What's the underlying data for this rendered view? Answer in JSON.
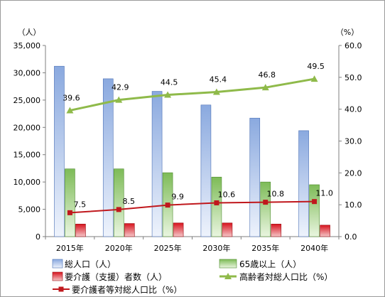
{
  "chart_data": {
    "type": "bar",
    "categories": [
      "2015年",
      "2020年",
      "2025年",
      "2030年",
      "2035年",
      "2040年"
    ],
    "left_axis": {
      "unit": "（人）",
      "min": 0,
      "max": 35000,
      "step": 5000,
      "ticks": [
        "0",
        "5,000",
        "10,000",
        "15,000",
        "20,000",
        "25,000",
        "30,000",
        "35,000"
      ]
    },
    "right_axis": {
      "unit": "（%）",
      "min": 0,
      "max": 60,
      "step": 10,
      "ticks": [
        "0.0",
        "10.0",
        "20.0",
        "30.0",
        "40.0",
        "50.0",
        "60.0"
      ]
    },
    "grid": false,
    "legend_position": "bottom",
    "series": [
      {
        "name": "総人口（人）",
        "kind": "bar",
        "axis": "left",
        "color": "#95b3e6",
        "values": [
          31200,
          28900,
          26600,
          24100,
          21700,
          19400
        ]
      },
      {
        "name": "65歳以上（人）",
        "kind": "bar",
        "axis": "left",
        "color": "#8fc46a",
        "values": [
          12400,
          12400,
          11700,
          10900,
          10000,
          9500
        ]
      },
      {
        "name": "要介護（支援）者数（人）",
        "kind": "bar",
        "axis": "left",
        "color": "#e0232b",
        "values": [
          2300,
          2400,
          2500,
          2500,
          2300,
          2100
        ]
      },
      {
        "name": "高齢者対総人口比（%）",
        "kind": "line",
        "axis": "right",
        "color": "#8fba4a",
        "marker": "triangle",
        "values": [
          39.6,
          42.9,
          44.5,
          45.4,
          46.8,
          49.5
        ],
        "labels": [
          "39.6",
          "42.9",
          "44.5",
          "45.4",
          "46.8",
          "49.5"
        ]
      },
      {
        "name": "要介護者等対総人口比（%）",
        "kind": "line",
        "axis": "right",
        "color": "#c0181d",
        "marker": "square",
        "values": [
          7.5,
          8.5,
          9.9,
          10.6,
          10.8,
          11.0
        ],
        "labels": [
          "7.5",
          "8.5",
          "9.9",
          "10.6",
          "10.8",
          "11.0"
        ]
      }
    ]
  }
}
